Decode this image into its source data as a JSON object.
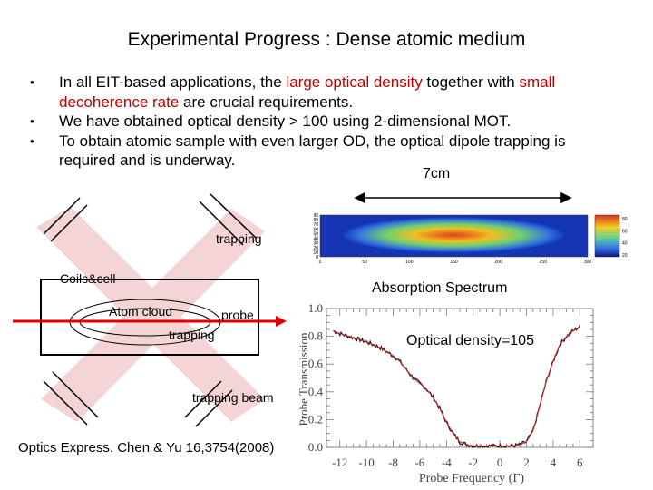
{
  "title": "Experimental Progress : Dense atomic medium",
  "bullets": [
    {
      "pre": "In all EIT-based applications, the ",
      "hl1": "large optical density",
      "mid": " together with ",
      "hl2": "small decoherence rate",
      "post": " are crucial requirements."
    },
    {
      "pre": "We have obtained optical density > 100 using 2-dimensional MOT.",
      "hl1": "",
      "mid": "",
      "hl2": "",
      "post": ""
    },
    {
      "pre": "To obtain atomic sample with even larger OD, the optical dipole trapping is required and is underway.",
      "hl1": "",
      "mid": "",
      "hl2": "",
      "post": ""
    }
  ],
  "bullet_symbol": "•",
  "distance_label": "7cm",
  "diagram": {
    "trapping_top": "trapping",
    "coils_cell": "Coils&cell",
    "atom_cloud": "Atom cloud",
    "probe": "probe",
    "trapping_mid": "trapping",
    "trapping_beam": "trapping beam"
  },
  "image_axis": {
    "x_ticks": [
      "0",
      "50",
      "100",
      "150",
      "200",
      "250",
      "300"
    ],
    "y_ticks": [
      "0",
      "10",
      "20",
      "30",
      "40",
      "50",
      "60",
      "70",
      "80",
      "90"
    ],
    "colorbar_ticks": [
      "80",
      "60",
      "40",
      "20"
    ]
  },
  "absorption": {
    "title": "Absorption Spectrum",
    "od_label": "Optical density=105",
    "ylabel": "Probe Transmission",
    "xlabel": "Probe Frequency (Γ)"
  },
  "chart_data": {
    "type": "line",
    "title": "Absorption Spectrum",
    "xlabel": "Probe Frequency (Γ)",
    "ylabel": "Probe Transmission",
    "xlim": [
      -13,
      7
    ],
    "ylim": [
      0,
      1.0
    ],
    "x_ticks": [
      "-12",
      "-10",
      "-8",
      "-6",
      "-4",
      "-2",
      "0",
      "2",
      "4",
      "6"
    ],
    "y_ticks": [
      "0.0",
      "0.2",
      "0.4",
      "0.6",
      "0.8",
      "1.0"
    ],
    "series": [
      {
        "x": [
          -12.5,
          -12,
          -11,
          -10,
          -9,
          -8,
          -7.5,
          -7,
          -6.5,
          -6,
          -5.5,
          -5,
          -4.5,
          -4,
          -3.5,
          -3,
          -2.5,
          -2,
          -1,
          0,
          1,
          1.5,
          2,
          2.5,
          3,
          3.5,
          4,
          4.5,
          5,
          5.5,
          6
        ],
        "y": [
          0.84,
          0.82,
          0.79,
          0.76,
          0.72,
          0.66,
          0.62,
          0.56,
          0.5,
          0.46,
          0.42,
          0.36,
          0.28,
          0.18,
          0.1,
          0.04,
          0.02,
          0.01,
          0.01,
          0.01,
          0.01,
          0.02,
          0.04,
          0.12,
          0.3,
          0.48,
          0.62,
          0.74,
          0.8,
          0.84,
          0.87
        ]
      }
    ]
  },
  "citation": "Optics Express. Chen & Yu 16,3754(2008)",
  "colors": {
    "highlight": "#c00000",
    "probe_beam": "#e00000",
    "trap_beam": "#f4d4d4"
  }
}
